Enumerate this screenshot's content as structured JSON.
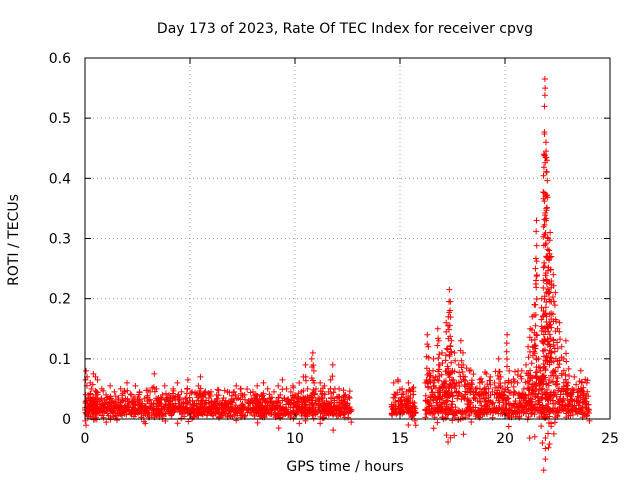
{
  "chart_data": {
    "type": "scatter",
    "title": "Day 173 of 2023, Rate Of TEC Index for receiver cpvg",
    "xlabel": "GPS time / hours",
    "ylabel": "ROTI / TECUs",
    "xlim": [
      0,
      25
    ],
    "ylim": [
      0,
      0.6
    ],
    "xticks": [
      0,
      5,
      10,
      15,
      20,
      25
    ],
    "xtick_labels": [
      "0",
      "5",
      "10",
      "15",
      "20",
      "25"
    ],
    "yticks": [
      0,
      0.1,
      0.2,
      0.3,
      0.4,
      0.5,
      0.6
    ],
    "ytick_labels": [
      "0",
      "0.1",
      "0.2",
      "0.3",
      "0.4",
      "0.5",
      "0.6"
    ],
    "grid": true,
    "marker": "+",
    "color": "#ff0000",
    "series": [
      {
        "name": "ROTI",
        "points": [
          [
            0.0,
            0.015
          ],
          [
            0.05,
            0.08
          ],
          [
            0.1,
            0.07
          ],
          [
            0.15,
            0.04
          ],
          [
            0.2,
            0.02
          ],
          [
            0.25,
            0.06
          ],
          [
            0.3,
            0.05
          ],
          [
            0.35,
            0.03
          ],
          [
            0.4,
            0.075
          ],
          [
            0.45,
            0.02
          ],
          [
            0.5,
            0.07
          ],
          [
            0.55,
            0.045
          ],
          [
            0.6,
            0.065
          ],
          [
            0.7,
            0.03
          ],
          [
            0.8,
            0.05
          ],
          [
            0.9,
            0.02
          ],
          [
            1.0,
            0.04
          ],
          [
            1.1,
            0.025
          ],
          [
            1.2,
            0.055
          ],
          [
            1.3,
            0.03
          ],
          [
            1.4,
            0.045
          ],
          [
            1.5,
            0.02
          ],
          [
            1.6,
            0.035
          ],
          [
            1.7,
            0.05
          ],
          [
            1.8,
            0.03
          ],
          [
            1.9,
            0.045
          ],
          [
            2.0,
            0.06
          ],
          [
            2.1,
            0.03
          ],
          [
            2.2,
            0.04
          ],
          [
            2.3,
            0.025
          ],
          [
            2.4,
            0.055
          ],
          [
            2.5,
            0.03
          ],
          [
            2.6,
            0.045
          ],
          [
            2.7,
            0.02
          ],
          [
            2.8,
            0.01
          ],
          [
            2.9,
            0.015
          ],
          [
            3.0,
            0.03
          ],
          [
            3.1,
            0.045
          ],
          [
            3.2,
            0.02
          ],
          [
            3.3,
            0.075
          ],
          [
            3.4,
            0.05
          ],
          [
            3.5,
            0.035
          ],
          [
            3.6,
            0.025
          ],
          [
            3.7,
            0.04
          ],
          [
            3.8,
            0.055
          ],
          [
            3.9,
            0.03
          ],
          [
            4.0,
            0.04
          ],
          [
            4.1,
            0.025
          ],
          [
            4.2,
            0.05
          ],
          [
            4.3,
            0.035
          ],
          [
            4.4,
            0.06
          ],
          [
            4.5,
            0.03
          ],
          [
            4.6,
            0.045
          ],
          [
            4.7,
            0.02
          ],
          [
            4.8,
            0.035
          ],
          [
            4.9,
            0.065
          ],
          [
            5.0,
            0.03
          ],
          [
            5.1,
            0.045
          ],
          [
            5.2,
            0.025
          ],
          [
            5.3,
            0.04
          ],
          [
            5.4,
            0.055
          ],
          [
            5.5,
            0.07
          ],
          [
            5.6,
            0.03
          ],
          [
            5.7,
            0.04
          ],
          [
            5.8,
            0.02
          ],
          [
            5.9,
            0.035
          ],
          [
            6.0,
            0.045
          ],
          [
            6.2,
            0.03
          ],
          [
            6.4,
            0.025
          ],
          [
            6.6,
            0.035
          ],
          [
            6.8,
            0.02
          ],
          [
            7.0,
            0.03
          ],
          [
            7.1,
            0.045
          ],
          [
            7.2,
            0.055
          ],
          [
            7.3,
            0.035
          ],
          [
            7.4,
            0.05
          ],
          [
            7.5,
            0.025
          ],
          [
            7.6,
            0.04
          ],
          [
            7.8,
            0.03
          ],
          [
            8.0,
            0.045
          ],
          [
            8.1,
            0.035
          ],
          [
            8.2,
            0.055
          ],
          [
            8.3,
            0.025
          ],
          [
            8.4,
            0.04
          ],
          [
            8.5,
            0.06
          ],
          [
            8.6,
            0.03
          ],
          [
            8.7,
            0.05
          ],
          [
            8.8,
            0.035
          ],
          [
            9.0,
            0.045
          ],
          [
            9.1,
            0.03
          ],
          [
            9.2,
            0.055
          ],
          [
            9.3,
            0.04
          ],
          [
            9.4,
            0.065
          ],
          [
            9.5,
            0.035
          ],
          [
            9.6,
            0.05
          ],
          [
            9.7,
            0.03
          ],
          [
            9.8,
            0.045
          ],
          [
            9.9,
            0.055
          ],
          [
            10.0,
            0.04
          ],
          [
            10.1,
            0.03
          ],
          [
            10.2,
            0.06
          ],
          [
            10.3,
            0.045
          ],
          [
            10.4,
            0.07
          ],
          [
            10.5,
            0.09
          ],
          [
            10.6,
            0.05
          ],
          [
            10.7,
            0.035
          ],
          [
            10.8,
            0.1
          ],
          [
            10.85,
            0.11
          ],
          [
            10.9,
            0.08
          ],
          [
            11.0,
            0.05
          ],
          [
            11.1,
            0.035
          ],
          [
            11.2,
            0.06
          ],
          [
            11.3,
            0.04
          ],
          [
            11.4,
            0.055
          ],
          [
            11.5,
            0.03
          ],
          [
            11.6,
            0.045
          ],
          [
            11.7,
            0.065
          ],
          [
            11.8,
            0.09
          ],
          [
            11.9,
            0.05
          ],
          [
            12.0,
            0.035
          ],
          [
            12.1,
            0.05
          ],
          [
            12.2,
            0.03
          ],
          [
            12.4,
            0.04
          ],
          [
            12.5,
            0.025
          ],
          [
            12.6,
            0.035
          ],
          [
            12.7,
            0.015
          ],
          [
            14.6,
            0.02
          ],
          [
            14.7,
            0.06
          ],
          [
            14.8,
            0.04
          ],
          [
            14.9,
            0.065
          ],
          [
            15.0,
            0.03
          ],
          [
            15.1,
            0.05
          ],
          [
            15.2,
            0.025
          ],
          [
            15.3,
            0.045
          ],
          [
            15.4,
            0.06
          ],
          [
            15.5,
            0.035
          ],
          [
            15.6,
            0.05
          ],
          [
            15.7,
            0.02
          ],
          [
            15.75,
            0.01
          ],
          [
            16.2,
            0.06
          ],
          [
            16.3,
            0.14
          ],
          [
            16.35,
            0.12
          ],
          [
            16.4,
            0.08
          ],
          [
            16.5,
            0.05
          ],
          [
            16.6,
            0.1
          ],
          [
            16.7,
            0.07
          ],
          [
            16.8,
            0.15
          ],
          [
            16.85,
            0.13
          ],
          [
            16.9,
            0.09
          ],
          [
            17.0,
            0.11
          ],
          [
            17.1,
            0.06
          ],
          [
            17.2,
            0.16
          ],
          [
            17.3,
            0.17
          ],
          [
            17.35,
            0.215
          ],
          [
            17.4,
            0.195
          ],
          [
            17.45,
            0.13
          ],
          [
            17.5,
            0.08
          ],
          [
            17.6,
            0.11
          ],
          [
            17.7,
            0.06
          ],
          [
            17.8,
            0.09
          ],
          [
            17.9,
            0.13
          ],
          [
            18.0,
            0.11
          ],
          [
            18.1,
            0.07
          ],
          [
            18.2,
            0.05
          ],
          [
            18.3,
            0.08
          ],
          [
            18.4,
            0.06
          ],
          [
            18.5,
            0.035
          ],
          [
            18.6,
            0.05
          ],
          [
            18.7,
            0.03
          ],
          [
            18.8,
            0.06
          ],
          [
            18.9,
            0.045
          ],
          [
            19.0,
            0.035
          ],
          [
            19.1,
            0.05
          ],
          [
            19.2,
            0.03
          ],
          [
            19.3,
            0.07
          ],
          [
            19.4,
            0.045
          ],
          [
            19.5,
            0.06
          ],
          [
            19.6,
            0.035
          ],
          [
            19.7,
            0.1
          ],
          [
            19.8,
            0.07
          ],
          [
            19.9,
            0.05
          ],
          [
            20.0,
            0.06
          ],
          [
            20.1,
            0.14
          ],
          [
            20.2,
            0.08
          ],
          [
            20.3,
            0.06
          ],
          [
            20.4,
            0.04
          ],
          [
            20.5,
            0.03
          ],
          [
            20.6,
            0.06
          ],
          [
            20.7,
            0.04
          ],
          [
            20.8,
            0.08
          ],
          [
            20.9,
            0.05
          ],
          [
            21.0,
            0.09
          ],
          [
            21.1,
            0.12
          ],
          [
            21.2,
            0.15
          ],
          [
            21.3,
            0.17
          ],
          [
            21.4,
            0.19
          ],
          [
            21.45,
            0.25
          ],
          [
            21.5,
            0.33
          ],
          [
            21.6,
            0.1
          ],
          [
            21.7,
            0.08
          ],
          [
            21.75,
            0.2
          ],
          [
            21.8,
            0.17
          ],
          [
            21.85,
            0.44
          ],
          [
            21.9,
            0.565
          ],
          [
            21.95,
            0.46
          ],
          [
            22.0,
            0.43
          ],
          [
            22.05,
            0.3
          ],
          [
            22.1,
            0.28
          ],
          [
            22.15,
            0.31
          ],
          [
            22.2,
            0.27
          ],
          [
            22.3,
            0.24
          ],
          [
            22.4,
            0.21
          ],
          [
            22.5,
            0.15
          ],
          [
            22.6,
            0.16
          ],
          [
            22.7,
            0.12
          ],
          [
            22.8,
            0.1
          ],
          [
            22.9,
            0.13
          ],
          [
            23.0,
            0.06
          ],
          [
            23.1,
            0.04
          ],
          [
            23.2,
            0.05
          ],
          [
            23.3,
            0.07
          ],
          [
            23.4,
            0.03
          ],
          [
            23.5,
            0.05
          ],
          [
            23.6,
            0.035
          ],
          [
            23.7,
            0.02
          ],
          [
            23.8,
            0.03
          ],
          [
            23.9,
            0.06
          ],
          [
            24.0,
            0.015
          ]
        ],
        "baseline": [
          [
            0.0,
            12.7,
            0.03,
            0.025
          ],
          [
            14.6,
            15.75,
            0.035,
            0.03
          ],
          [
            16.2,
            24.0,
            0.045,
            0.045
          ]
        ]
      }
    ]
  }
}
